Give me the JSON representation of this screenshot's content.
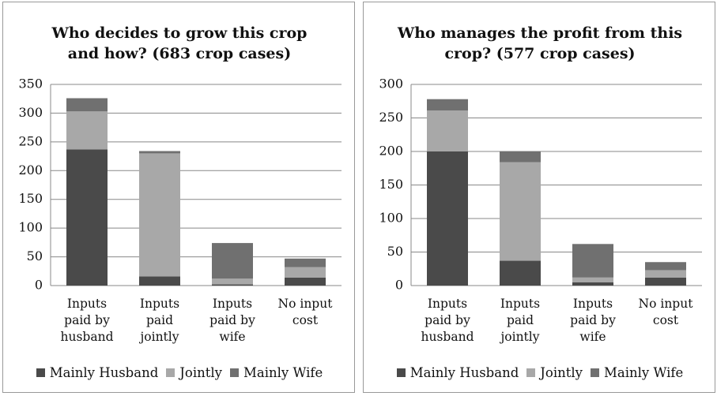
{
  "chart_data": [
    {
      "type": "bar",
      "stacked": true,
      "title": "Who decides to grow this crop and how? (683 crop cases)",
      "categories": [
        "Inputs paid by husband",
        "Inputs paid jointly",
        "Inputs paid by wife",
        "No input cost"
      ],
      "series": [
        {
          "name": "Mainly Husband",
          "color": "#4a4a4a",
          "values": [
            237,
            16,
            2,
            14
          ]
        },
        {
          "name": "Jointly",
          "color": "#a8a8a8",
          "values": [
            66,
            214,
            10,
            18
          ]
        },
        {
          "name": "Mainly Wife",
          "color": "#707070",
          "values": [
            23,
            4,
            62,
            15
          ]
        }
      ],
      "ylim": [
        0,
        350
      ],
      "yticks": [
        0,
        50,
        100,
        150,
        200,
        250,
        300,
        350
      ],
      "grid": true,
      "legend": "bottom"
    },
    {
      "type": "bar",
      "stacked": true,
      "title": "Who manages the profit from this crop? (577 crop cases)",
      "categories": [
        "Inputs paid by husband",
        "Inputs paid jointly",
        "Inputs paid by wife",
        "No input cost"
      ],
      "series": [
        {
          "name": "Mainly Husband",
          "color": "#4a4a4a",
          "values": [
            200,
            37,
            5,
            12
          ]
        },
        {
          "name": "Jointly",
          "color": "#a8a8a8",
          "values": [
            61,
            147,
            7,
            11
          ]
        },
        {
          "name": "Mainly Wife",
          "color": "#707070",
          "values": [
            17,
            16,
            50,
            12
          ]
        }
      ],
      "ylim": [
        0,
        300
      ],
      "yticks": [
        0,
        50,
        100,
        150,
        200,
        250,
        300
      ],
      "grid": true,
      "legend": "bottom"
    }
  ]
}
